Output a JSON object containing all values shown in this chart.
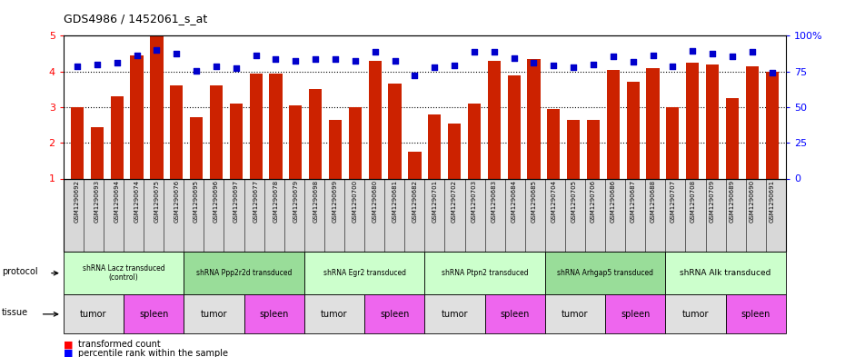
{
  "title": "GDS4986 / 1452061_s_at",
  "sample_ids": [
    "GSM1290692",
    "GSM1290693",
    "GSM1290694",
    "GSM1290674",
    "GSM1290675",
    "GSM1290676",
    "GSM1290695",
    "GSM1290696",
    "GSM1290697",
    "GSM1290677",
    "GSM1290678",
    "GSM1290679",
    "GSM1290698",
    "GSM1290699",
    "GSM1290700",
    "GSM1290680",
    "GSM1290681",
    "GSM1290682",
    "GSM1290701",
    "GSM1290702",
    "GSM1290703",
    "GSM1290683",
    "GSM1290684",
    "GSM1290685",
    "GSM1290704",
    "GSM1290705",
    "GSM1290706",
    "GSM1290686",
    "GSM1290687",
    "GSM1290688",
    "GSM1290707",
    "GSM1290708",
    "GSM1290709",
    "GSM1290689",
    "GSM1290690",
    "GSM1290691"
  ],
  "bar_values": [
    3.0,
    2.45,
    3.3,
    4.45,
    5.0,
    3.6,
    2.72,
    3.6,
    3.1,
    3.95,
    3.95,
    3.05,
    3.5,
    2.65,
    3.0,
    4.3,
    3.65,
    1.75,
    2.8,
    2.55,
    3.1,
    4.3,
    3.9,
    4.35,
    2.95,
    2.65,
    2.65,
    4.05,
    3.7,
    4.1,
    3.0,
    4.25,
    4.2,
    3.25,
    4.15,
    4.0
  ],
  "dot_values": [
    4.15,
    4.2,
    4.25,
    4.45,
    4.6,
    4.5,
    4.02,
    4.15,
    4.1,
    4.45,
    4.35,
    4.3,
    4.35,
    4.35,
    4.3,
    4.55,
    4.3,
    3.88,
    4.12,
    4.18,
    4.55,
    4.55,
    4.38,
    4.25,
    4.18,
    4.12,
    4.2,
    4.42,
    4.28,
    4.45,
    4.15,
    4.58,
    4.5,
    4.42,
    4.55,
    3.97
  ],
  "protocols": [
    {
      "label": "shRNA Lacz transduced\n(control)",
      "start": 0,
      "end": 5,
      "color": "#ccffcc"
    },
    {
      "label": "shRNA Ppp2r2d transduced",
      "start": 6,
      "end": 11,
      "color": "#99dd99"
    },
    {
      "label": "shRNA Egr2 transduced",
      "start": 12,
      "end": 17,
      "color": "#ccffcc"
    },
    {
      "label": "shRNA Ptpn2 transduced",
      "start": 18,
      "end": 23,
      "color": "#ccffcc"
    },
    {
      "label": "shRNA Arhgap5 transduced",
      "start": 24,
      "end": 29,
      "color": "#99dd99"
    },
    {
      "label": "shRNA Alk transduced",
      "start": 30,
      "end": 35,
      "color": "#ccffcc"
    }
  ],
  "tissues": [
    {
      "label": "tumor",
      "start": 0,
      "end": 2,
      "color": "#e0e0e0"
    },
    {
      "label": "spleen",
      "start": 3,
      "end": 5,
      "color": "#ee66ee"
    },
    {
      "label": "tumor",
      "start": 6,
      "end": 8,
      "color": "#e0e0e0"
    },
    {
      "label": "spleen",
      "start": 9,
      "end": 11,
      "color": "#ee66ee"
    },
    {
      "label": "tumor",
      "start": 12,
      "end": 14,
      "color": "#e0e0e0"
    },
    {
      "label": "spleen",
      "start": 15,
      "end": 17,
      "color": "#ee66ee"
    },
    {
      "label": "tumor",
      "start": 18,
      "end": 20,
      "color": "#e0e0e0"
    },
    {
      "label": "spleen",
      "start": 21,
      "end": 23,
      "color": "#ee66ee"
    },
    {
      "label": "tumor",
      "start": 24,
      "end": 26,
      "color": "#e0e0e0"
    },
    {
      "label": "spleen",
      "start": 27,
      "end": 29,
      "color": "#ee66ee"
    },
    {
      "label": "tumor",
      "start": 30,
      "end": 32,
      "color": "#e0e0e0"
    },
    {
      "label": "spleen",
      "start": 33,
      "end": 35,
      "color": "#ee66ee"
    }
  ],
  "ylim": [
    1,
    5
  ],
  "yticks": [
    1,
    2,
    3,
    4,
    5
  ],
  "right_yticks": [
    0,
    25,
    50,
    75,
    100
  ],
  "bar_color": "#cc2200",
  "dot_color": "#0000cc",
  "legend_red": "transformed count",
  "legend_blue": "percentile rank within the sample"
}
